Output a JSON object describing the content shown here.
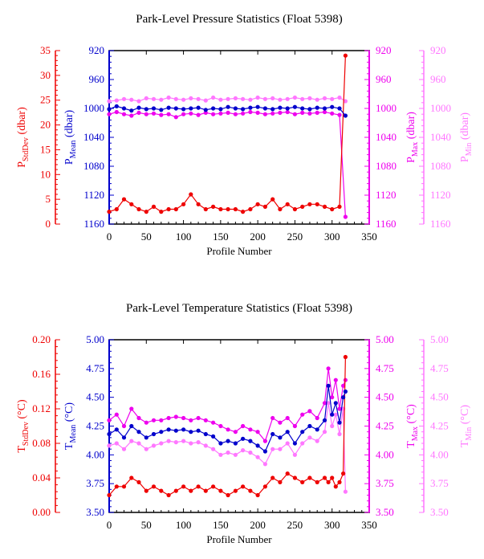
{
  "colors": {
    "stddev": "#ee0000",
    "mean": "#0000cc",
    "max": "#ee00ee",
    "min": "#ff77ff",
    "axis": "#000000"
  },
  "chart_data": [
    {
      "type": "line",
      "title": "Park-Level Pressure Statistics (Float 5398)",
      "xlabel": "Profile Number",
      "xlim": [
        0,
        350
      ],
      "xticks": [
        "0",
        "50",
        "100",
        "150",
        "200",
        "250",
        "300",
        "350"
      ],
      "axes": [
        {
          "key": "stddev",
          "label_base": "P",
          "label_sub": "StdDev",
          "label_unit": " (dbar)",
          "lim": [
            0,
            35
          ],
          "ticks": [
            "0",
            "5",
            "10",
            "15",
            "20",
            "25",
            "30",
            "35"
          ]
        },
        {
          "key": "mean",
          "label_base": "P",
          "label_sub": "Mean",
          "label_unit": " (dbar)",
          "lim": [
            1160,
            920
          ],
          "ticks": [
            "1160",
            "1120",
            "1080",
            "1040",
            "1000",
            "960",
            "920"
          ]
        },
        {
          "key": "max",
          "label_base": "P",
          "label_sub": "Max",
          "label_unit": " (dbar)",
          "lim": [
            1160,
            920
          ],
          "ticks": [
            "1160",
            "1120",
            "1080",
            "1040",
            "1000",
            "960",
            "920"
          ]
        },
        {
          "key": "min",
          "label_base": "P",
          "label_sub": "Min",
          "label_unit": " (dbar)",
          "lim": [
            1160,
            920
          ],
          "ticks": [
            "1160",
            "1120",
            "1080",
            "1040",
            "1000",
            "960",
            "920"
          ]
        }
      ],
      "x": [
        0,
        10,
        20,
        30,
        40,
        50,
        60,
        70,
        80,
        90,
        100,
        110,
        120,
        130,
        140,
        150,
        160,
        170,
        180,
        190,
        200,
        210,
        220,
        230,
        240,
        250,
        260,
        270,
        280,
        290,
        300,
        310,
        318
      ],
      "series": [
        {
          "key": "stddev",
          "values": [
            2.5,
            3,
            5,
            4,
            3,
            2.5,
            3.5,
            2.5,
            3,
            3,
            4,
            6,
            4,
            3,
            3.5,
            3,
            3,
            3,
            2.5,
            3,
            4,
            3.5,
            5,
            3,
            4,
            3,
            3.5,
            4,
            4,
            3.5,
            3,
            3.5,
            34
          ]
        },
        {
          "key": "mean",
          "values": [
            1001,
            997,
            1000,
            1003,
            999,
            1001,
            1000,
            1002,
            999,
            1000,
            1001,
            1000,
            999,
            1002,
            1000,
            1001,
            998,
            1000,
            1001,
            999,
            998,
            1000,
            1001,
            999,
            1000,
            998,
            1000,
            1001,
            999,
            1000,
            998,
            1000,
            1010
          ]
        },
        {
          "key": "max",
          "values": [
            1008,
            1005,
            1008,
            1010,
            1006,
            1008,
            1007,
            1009,
            1008,
            1012,
            1008,
            1007,
            1009,
            1006,
            1008,
            1007,
            1006,
            1008,
            1007,
            1005,
            1006,
            1008,
            1007,
            1006,
            1005,
            1008,
            1006,
            1007,
            1006,
            1005,
            1007,
            1009,
            1150
          ]
        },
        {
          "key": "min",
          "values": [
            990,
            989,
            987,
            988,
            990,
            986,
            987,
            988,
            985,
            987,
            988,
            986,
            987,
            989,
            985,
            988,
            987,
            986,
            987,
            988,
            985,
            987,
            986,
            988,
            987,
            985,
            987,
            986,
            988,
            986,
            987,
            985,
            990
          ]
        }
      ]
    },
    {
      "type": "line",
      "title": "Park-Level Temperature Statistics (Float 5398)",
      "xlabel": "Profile Number",
      "xlim": [
        0,
        350
      ],
      "xticks": [
        "0",
        "50",
        "100",
        "150",
        "200",
        "250",
        "300",
        "350"
      ],
      "axes": [
        {
          "key": "stddev",
          "label_base": "T",
          "label_sub": "StdDev",
          "label_unit": " (°C)",
          "lim": [
            0,
            0.2
          ],
          "ticks": [
            "0.00",
            "0.04",
            "0.08",
            "0.12",
            "0.16",
            "0.20"
          ]
        },
        {
          "key": "mean",
          "label_base": "T",
          "label_sub": "Mean",
          "label_unit": " (°C)",
          "lim": [
            3.5,
            5.0
          ],
          "ticks": [
            "3.50",
            "3.75",
            "4.00",
            "4.25",
            "4.50",
            "4.75",
            "5.00"
          ]
        },
        {
          "key": "max",
          "label_base": "T",
          "label_sub": "Max",
          "label_unit": " (°C)",
          "lim": [
            3.5,
            5.0
          ],
          "ticks": [
            "3.50",
            "3.75",
            "4.00",
            "4.25",
            "4.50",
            "4.75",
            "5.00"
          ]
        },
        {
          "key": "min",
          "label_base": "T",
          "label_sub": "Min",
          "label_unit": " (°C)",
          "lim": [
            3.5,
            5.0
          ],
          "ticks": [
            "3.50",
            "3.75",
            "4.00",
            "4.25",
            "4.50",
            "4.75",
            "5.00"
          ]
        }
      ],
      "x": [
        0,
        10,
        20,
        30,
        40,
        50,
        60,
        70,
        80,
        90,
        100,
        110,
        120,
        130,
        140,
        150,
        160,
        170,
        180,
        190,
        200,
        210,
        220,
        230,
        240,
        250,
        260,
        270,
        280,
        290,
        295,
        300,
        305,
        310,
        315,
        318
      ],
      "series": [
        {
          "key": "stddev",
          "values": [
            0.02,
            0.03,
            0.03,
            0.04,
            0.035,
            0.025,
            0.03,
            0.025,
            0.02,
            0.025,
            0.03,
            0.025,
            0.03,
            0.025,
            0.03,
            0.025,
            0.02,
            0.025,
            0.03,
            0.025,
            0.02,
            0.03,
            0.04,
            0.035,
            0.045,
            0.04,
            0.035,
            0.04,
            0.035,
            0.04,
            0.035,
            0.04,
            0.03,
            0.035,
            0.045,
            0.18
          ]
        },
        {
          "key": "mean",
          "values": [
            4.18,
            4.22,
            4.15,
            4.25,
            4.2,
            4.15,
            4.18,
            4.2,
            4.22,
            4.21,
            4.22,
            4.2,
            4.21,
            4.18,
            4.16,
            4.1,
            4.12,
            4.1,
            4.14,
            4.12,
            4.08,
            4.03,
            4.18,
            4.15,
            4.2,
            4.1,
            4.2,
            4.25,
            4.22,
            4.3,
            4.6,
            4.35,
            4.45,
            4.28,
            4.5,
            4.55
          ]
        },
        {
          "key": "max",
          "values": [
            4.3,
            4.35,
            4.25,
            4.4,
            4.32,
            4.28,
            4.3,
            4.3,
            4.32,
            4.33,
            4.32,
            4.3,
            4.32,
            4.3,
            4.28,
            4.25,
            4.22,
            4.2,
            4.25,
            4.22,
            4.2,
            4.12,
            4.32,
            4.28,
            4.32,
            4.25,
            4.35,
            4.38,
            4.32,
            4.45,
            4.75,
            4.5,
            4.65,
            4.4,
            4.6,
            4.65
          ]
        },
        {
          "key": "min",
          "values": [
            4.08,
            4.1,
            4.05,
            4.12,
            4.1,
            4.05,
            4.08,
            4.1,
            4.12,
            4.11,
            4.12,
            4.1,
            4.11,
            4.08,
            4.05,
            4.0,
            4.02,
            4.0,
            4.04,
            4.02,
            3.98,
            3.92,
            4.05,
            4.05,
            4.1,
            4.0,
            4.1,
            4.15,
            4.12,
            4.2,
            4.45,
            4.25,
            4.35,
            4.18,
            4.4,
            3.68
          ]
        }
      ]
    }
  ]
}
